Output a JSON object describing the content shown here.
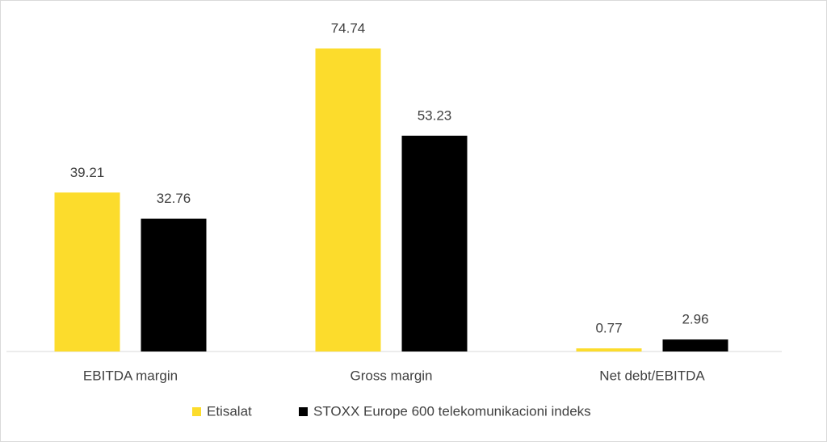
{
  "chart_data": {
    "type": "bar",
    "categories": [
      "EBITDA margin",
      "Gross margin",
      "Net debt/EBITDA"
    ],
    "series": [
      {
        "name": "Etisalat",
        "color": "#fcdc2c",
        "values": [
          39.21,
          74.74,
          0.77
        ]
      },
      {
        "name": "STOXX Europe 600 telekomunikacioni indeks",
        "color": "#000000",
        "values": [
          32.76,
          53.23,
          2.96
        ]
      }
    ],
    "legend": "bottom"
  }
}
